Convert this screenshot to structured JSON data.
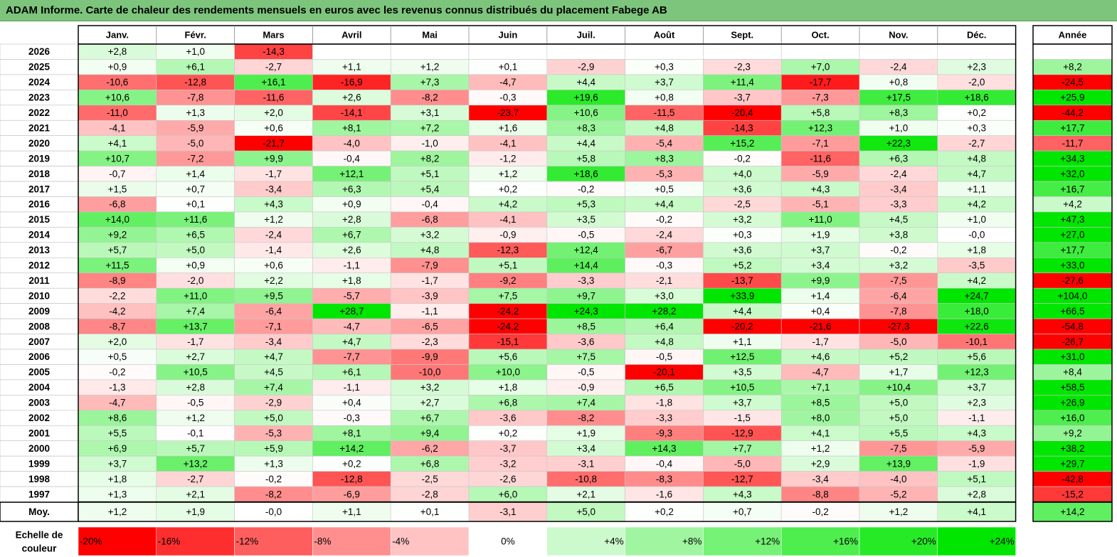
{
  "title": "ADAM Informe. Carte de chaleur des rendements mensuels en euros avec les revenus connus distribués du placement Fabege AB",
  "colors": {
    "title_bg": "#7dc57d",
    "neg_strong": "#ff0000",
    "pos_strong": "#00e600",
    "neutral": "#ffffff"
  },
  "chart_data": {
    "type": "heatmap",
    "title": "ADAM Informe. Carte de chaleur des rendements mensuels en euros avec les revenus connus distribués du placement Fabege AB",
    "months": [
      "Janv.",
      "Févr.",
      "Mars",
      "Avril",
      "Mai",
      "Juin",
      "Juil.",
      "Août",
      "Sept.",
      "Oct.",
      "Nov.",
      "Déc."
    ],
    "year_header": "Année",
    "years": [
      "2026",
      "2025",
      "2024",
      "2023",
      "2022",
      "2021",
      "2020",
      "2019",
      "2018",
      "2017",
      "2016",
      "2015",
      "2014",
      "2013",
      "2012",
      "2011",
      "2010",
      "2009",
      "2008",
      "2007",
      "2006",
      "2005",
      "2004",
      "2003",
      "2002",
      "2001",
      "2000",
      "1999",
      "1998",
      "1997"
    ],
    "values": [
      [
        "+2,8",
        "+1,0",
        "-14,3",
        "",
        "",
        "",
        "",
        "",
        "",
        "",
        "",
        ""
      ],
      [
        "+0,9",
        "+6,1",
        "-2,7",
        "+1,1",
        "+1,2",
        "+0,1",
        "-2,9",
        "+0,3",
        "-2,3",
        "+7,0",
        "-2,4",
        "+2,3"
      ],
      [
        "-10,6",
        "-12,8",
        "+16,1",
        "-16,9",
        "+7,3",
        "-4,7",
        "+4,4",
        "+3,7",
        "+11,4",
        "-17,7",
        "+0,8",
        "-2,0"
      ],
      [
        "+10,6",
        "-7,8",
        "-11,6",
        "+2,6",
        "-8,2",
        "-0,3",
        "+19,6",
        "+0,8",
        "-3,7",
        "-7,3",
        "+17,5",
        "+18,6"
      ],
      [
        "-11,0",
        "+1,3",
        "+2,0",
        "-14,1",
        "+3,1",
        "-23,7",
        "+10,6",
        "-11,5",
        "-20,4",
        "+5,8",
        "+8,3",
        "+0,2"
      ],
      [
        "-4,1",
        "-5,9",
        "+0,6",
        "+8,1",
        "+7,2",
        "+1,6",
        "+8,3",
        "+4,8",
        "-14,3",
        "+12,3",
        "+1,0",
        "+0,3"
      ],
      [
        "+4,1",
        "-5,0",
        "-21,7",
        "-4,0",
        "-1,0",
        "-4,1",
        "+4,4",
        "-5,4",
        "+15,2",
        "-7,1",
        "+22,3",
        "-2,7"
      ],
      [
        "+10,7",
        "-7,2",
        "+9,9",
        "-0,4",
        "+8,2",
        "-1,2",
        "+5,8",
        "+8,3",
        "-0,2",
        "-11,6",
        "+6,3",
        "+4,8"
      ],
      [
        "-0,7",
        "+1,4",
        "-1,7",
        "+12,1",
        "+5,1",
        "+1,2",
        "+18,6",
        "-5,3",
        "+4,0",
        "-5,9",
        "-2,4",
        "+4,7"
      ],
      [
        "+1,5",
        "+0,7",
        "-3,4",
        "+6,3",
        "+5,4",
        "+0,2",
        "-0,2",
        "+0,5",
        "+3,6",
        "+4,3",
        "-3,4",
        "+1,1"
      ],
      [
        "-6,8",
        "+0,1",
        "+4,3",
        "+0,9",
        "-0,4",
        "+4,2",
        "+5,3",
        "+4,4",
        "-2,5",
        "-5,1",
        "-3,3",
        "+4,2"
      ],
      [
        "+14,0",
        "+11,6",
        "+1,2",
        "+2,8",
        "-6,8",
        "-4,1",
        "+3,5",
        "-0,2",
        "+3,2",
        "+11,0",
        "+4,5",
        "+1,0"
      ],
      [
        "+9,2",
        "+6,5",
        "-2,4",
        "+6,7",
        "+3,2",
        "-0,9",
        "-0,5",
        "-2,4",
        "+0,3",
        "+1,9",
        "+3,8",
        "-0,0"
      ],
      [
        "+5,7",
        "+5,0",
        "-1,4",
        "+2,6",
        "+4,8",
        "-12,3",
        "+12,4",
        "-6,7",
        "+3,6",
        "+3,7",
        "-0,2",
        "+1,8"
      ],
      [
        "+11,5",
        "+0,9",
        "+0,6",
        "-1,1",
        "-7,9",
        "+5,1",
        "+14,4",
        "-0,3",
        "+5,2",
        "+3,4",
        "+3,2",
        "-3,5"
      ],
      [
        "-8,9",
        "-2,0",
        "+2,2",
        "+1,8",
        "-1,7",
        "-9,2",
        "-3,3",
        "-2,1",
        "-13,7",
        "+9,9",
        "-7,5",
        "+4,2"
      ],
      [
        "-2,2",
        "+11,0",
        "+9,5",
        "-5,7",
        "-3,9",
        "+7,5",
        "+9,7",
        "+3,0",
        "+33,9",
        "+1,4",
        "-6,4",
        "+24,7"
      ],
      [
        "-4,2",
        "+7,4",
        "-6,4",
        "+28,7",
        "-1,1",
        "-24,2",
        "+24,3",
        "+28,2",
        "+4,4",
        "+0,4",
        "-7,8",
        "+18,0"
      ],
      [
        "-8,7",
        "+13,7",
        "-7,1",
        "-4,7",
        "-6,5",
        "-24,2",
        "+8,5",
        "+6,4",
        "-20,2",
        "-21,6",
        "-27,3",
        "+22,6"
      ],
      [
        "+2,0",
        "-1,7",
        "-3,4",
        "+4,7",
        "-2,3",
        "-15,1",
        "-3,6",
        "+4,8",
        "+1,1",
        "-1,7",
        "-5,0",
        "-10,1"
      ],
      [
        "+0,5",
        "+2,7",
        "+4,7",
        "-7,7",
        "-9,9",
        "+5,6",
        "+7,5",
        "-0,5",
        "+12,5",
        "+4,6",
        "+5,2",
        "+5,6"
      ],
      [
        "-0,2",
        "+10,5",
        "+4,5",
        "+6,1",
        "-10,0",
        "+10,0",
        "-0,5",
        "-20,1",
        "+3,5",
        "-4,7",
        "+1,7",
        "+12,3"
      ],
      [
        "-1,3",
        "+2,8",
        "+7,4",
        "-1,1",
        "+3,2",
        "+1,8",
        "-0,9",
        "+6,5",
        "+10,5",
        "+7,1",
        "+10,4",
        "+3,7"
      ],
      [
        "-4,7",
        "-0,5",
        "-2,9",
        "+0,4",
        "+2,7",
        "+6,8",
        "+7,4",
        "-1,8",
        "+3,7",
        "+8,5",
        "+5,0",
        "+2,3"
      ],
      [
        "+8,6",
        "+1,2",
        "+5,0",
        "-0,3",
        "+6,7",
        "-3,6",
        "-8,2",
        "-3,3",
        "-1,5",
        "+8,0",
        "+5,0",
        "-1,1"
      ],
      [
        "+5,5",
        "-0,1",
        "-5,3",
        "+8,1",
        "+9,4",
        "+0,2",
        "+1,9",
        "-9,3",
        "-12,9",
        "+4,1",
        "+5,5",
        "+4,3"
      ],
      [
        "+6,9",
        "+5,7",
        "+5,9",
        "+14,2",
        "-6,2",
        "-3,7",
        "+3,4",
        "+14,3",
        "+7,7",
        "+1,2",
        "-7,5",
        "-5,9"
      ],
      [
        "+3,7",
        "+13,2",
        "+1,3",
        "+0,2",
        "+6,8",
        "-3,2",
        "-3,1",
        "-0,4",
        "-5,0",
        "+2,9",
        "+13,9",
        "-1,9"
      ],
      [
        "+1,8",
        "-2,7",
        "-0,2",
        "-12,8",
        "-2,5",
        "-2,6",
        "-10,8",
        "-8,3",
        "-12,7",
        "-3,4",
        "-4,0",
        "+5,1"
      ],
      [
        "+1,3",
        "+2,1",
        "-8,2",
        "-6,9",
        "-2,8",
        "+6,0",
        "+2,1",
        "-1,6",
        "+4,3",
        "-8,8",
        "-5,2",
        "+2,8"
      ]
    ],
    "annual": [
      "",
      "+8,2",
      "-24,5",
      "+25,9",
      "-44,2",
      "+17,7",
      "-11,7",
      "+34,3",
      "+32,0",
      "+16,7",
      "+4,2",
      "+47,3",
      "+27,0",
      "+17,7",
      "+33,0",
      "-27,6",
      "+104,0",
      "+66,5",
      "-54,8",
      "-26,7",
      "+31,0",
      "+8,4",
      "+58,5",
      "+26,9",
      "+16,0",
      "+9,2",
      "+38,2",
      "+29,7",
      "-42,8",
      "-15,2"
    ],
    "avg_label": "Moy.",
    "avg_values": [
      "+1,2",
      "+1,9",
      "-0,0",
      "+1,1",
      "+0,1",
      "-3,1",
      "+5,0",
      "+0,2",
      "+0,7",
      "-0,2",
      "+1,2",
      "+4,1"
    ],
    "avg_annual": "+14,2",
    "scale_label_1": "Echelle de",
    "scale_label_2": "couleur",
    "scale": [
      "-20%",
      "-16%",
      "-12%",
      "-8%",
      "-4%",
      "0%",
      "+4%",
      "+8%",
      "+12%",
      "+16%",
      "+20%",
      "+24%"
    ],
    "scale_values": [
      -20,
      -16,
      -12,
      -8,
      -4,
      0,
      4,
      8,
      12,
      16,
      20,
      24
    ]
  }
}
